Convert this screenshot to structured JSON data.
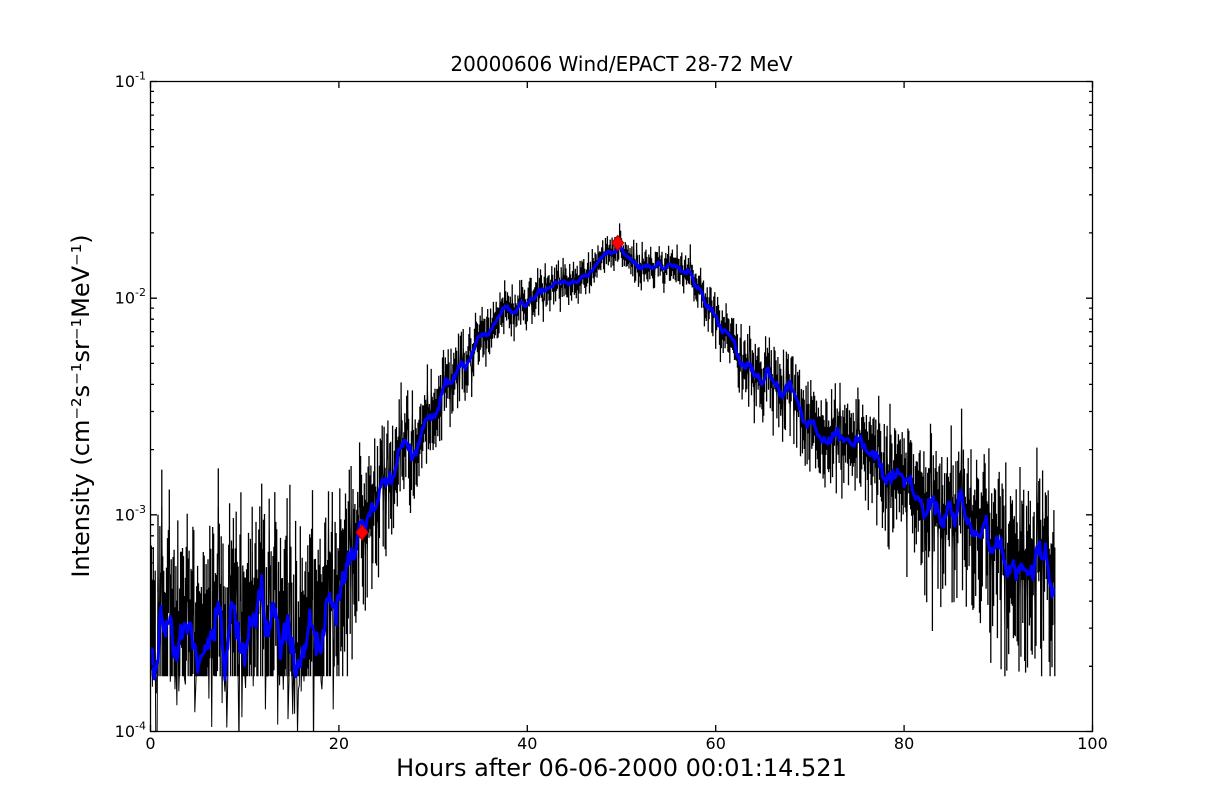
{
  "chart_data": {
    "type": "line",
    "title": "20000606 Wind/EPACT 28-72 MeV",
    "xlabel": "Hours after 06-06-2000 00:01:14.521",
    "ylabel": "Intensity (cm⁻²s⁻¹sr⁻¹MeV⁻¹)",
    "xlim": [
      0,
      100
    ],
    "ylog": true,
    "ylim": [
      0.0001,
      0.1
    ],
    "xticks": [
      0,
      20,
      40,
      60,
      80,
      100
    ],
    "ytick_exponents": [
      -4,
      -3,
      -2,
      -1
    ],
    "grid": false,
    "legend": null,
    "colors": {
      "raw": "#000000",
      "smoothed": "#0000ff",
      "marker": "#ff0000",
      "marker_edge": "#bb0000",
      "axes": "#000000",
      "background": "#ffffff"
    },
    "series": [
      {
        "name": "raw intensity with error bars",
        "color": "#000000",
        "style": "errorbar"
      },
      {
        "name": "smoothed intensity",
        "color": "#0000ff",
        "style": "line"
      }
    ],
    "markers": {
      "shape": "diamond",
      "color": "#ff0000",
      "size": {
        "w": 12,
        "h": 15
      },
      "points": [
        {
          "x": 22.45,
          "y": 0.00083
        },
        {
          "x": 49.6,
          "y": 0.018
        }
      ]
    },
    "envelope": {
      "comment": "digitized smoothed-curve anchor points: hours vs intensity",
      "x": [
        0,
        2,
        4,
        6,
        8,
        10,
        12,
        14,
        16,
        18,
        19,
        20,
        21,
        22.45,
        24,
        26,
        28,
        30,
        32,
        34,
        36,
        38,
        40,
        42,
        44,
        46,
        48,
        49,
        49.7,
        50.5,
        51.5,
        52.5,
        54,
        55.5,
        57,
        58.5,
        60,
        62,
        64,
        66,
        68,
        70,
        72,
        74,
        76,
        78,
        80,
        82,
        84,
        86,
        88,
        90,
        92,
        94,
        96
      ],
      "y": [
        0.0003,
        0.00028,
        0.00032,
        0.00029,
        0.0003,
        0.00028,
        0.00031,
        0.00029,
        0.0003,
        0.00031,
        0.00037,
        0.00048,
        0.00062,
        0.00083,
        0.00115,
        0.0015,
        0.0021,
        0.0029,
        0.004,
        0.0056,
        0.0072,
        0.0088,
        0.0098,
        0.0108,
        0.0115,
        0.0125,
        0.015,
        0.016,
        0.0165,
        0.0155,
        0.0145,
        0.0138,
        0.014,
        0.0145,
        0.013,
        0.0105,
        0.008,
        0.0058,
        0.0043,
        0.0042,
        0.0035,
        0.0026,
        0.00225,
        0.0021,
        0.0019,
        0.00155,
        0.00145,
        0.00132,
        0.00108,
        0.0009,
        0.00078,
        0.00071,
        0.00066,
        0.00061,
        0.00057
      ]
    },
    "render": {
      "seed": 42,
      "dt": 0.1,
      "data_x_range": [
        0,
        96
      ],
      "error_floor": 0.00018,
      "raw_sigma_coef": 0.085,
      "err_coef": 0.115,
      "ref_intensity": 0.012,
      "smooth_window": 7,
      "line_width_smooth": 3,
      "line_width_raw": 1.0,
      "bar_width": 1.3,
      "tick_major": 6.5,
      "tick_minor": 3.5,
      "frame_width": 1.3
    }
  }
}
